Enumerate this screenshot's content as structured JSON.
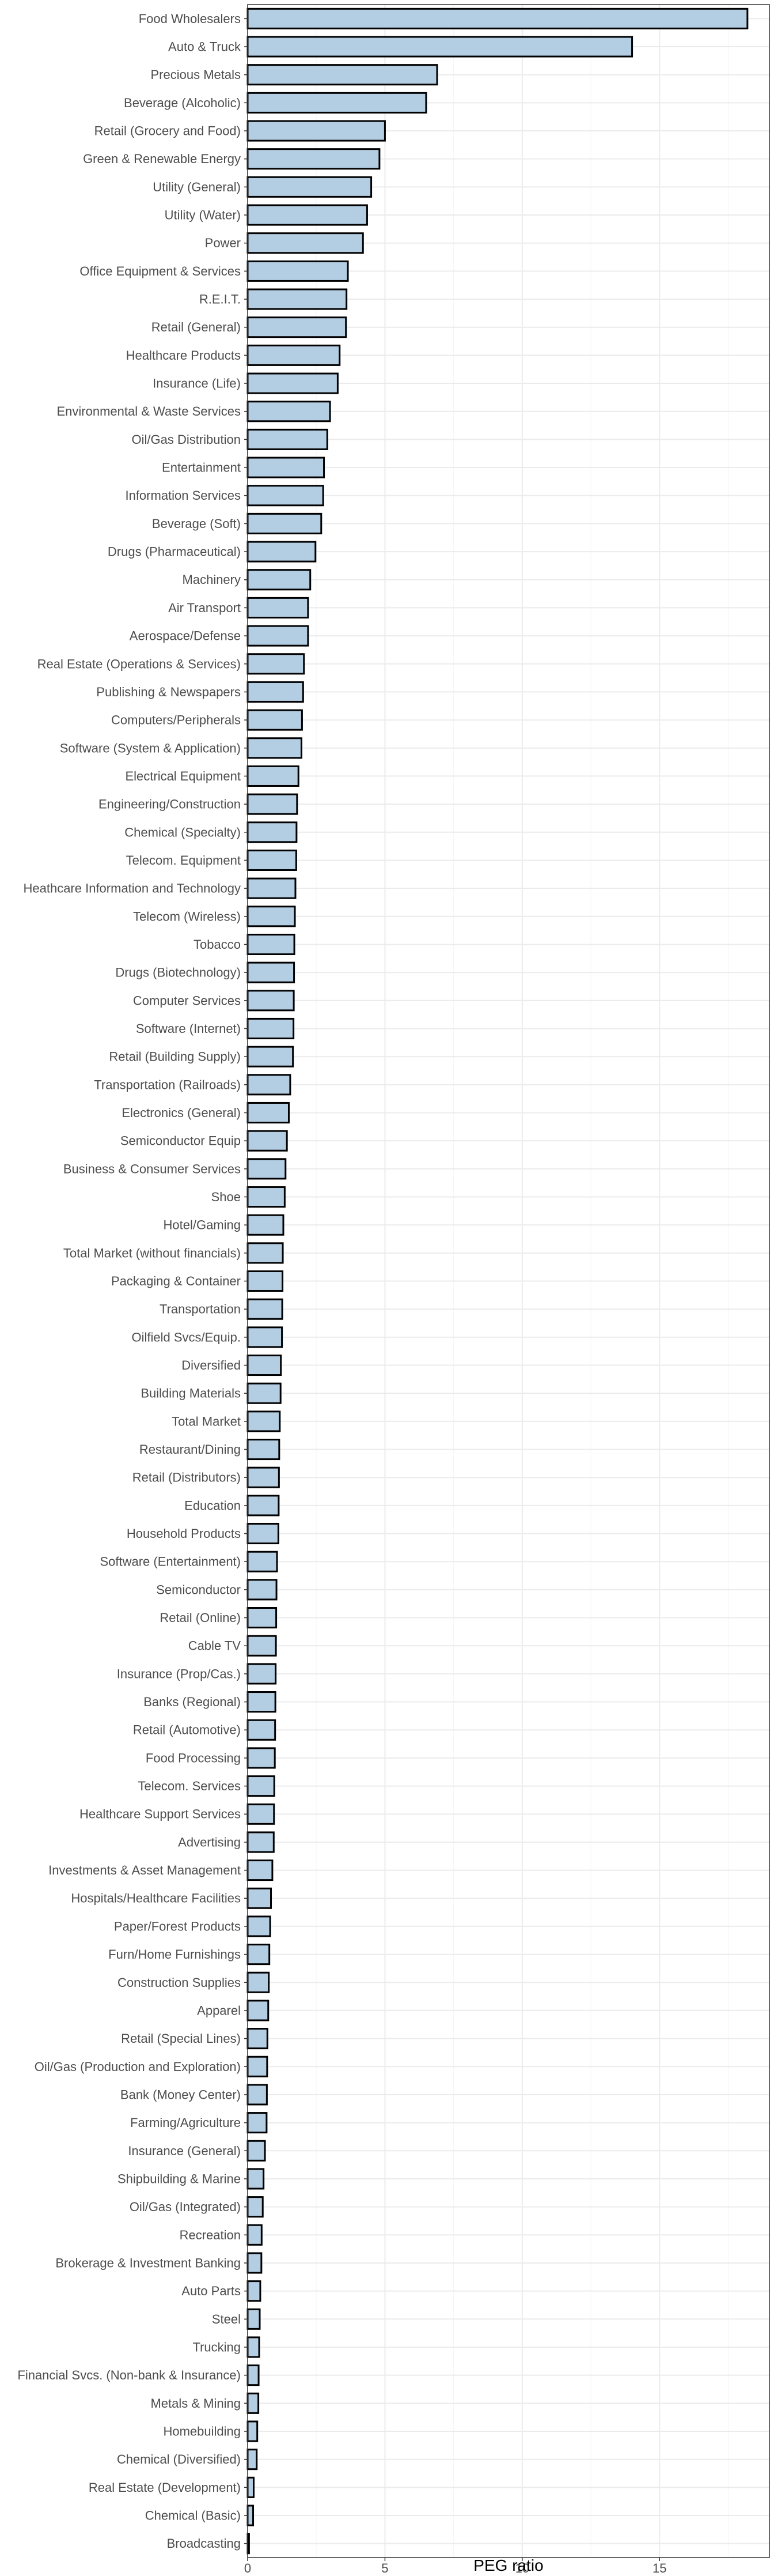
{
  "chart_data": {
    "type": "bar",
    "orientation": "horizontal",
    "title": "",
    "xlabel": "PEG ratio",
    "ylabel": "",
    "xlim": [
      0,
      19
    ],
    "x_ticks": [
      0,
      5,
      10,
      15
    ],
    "x_tick_labels": [
      "0",
      "5",
      "10",
      "15"
    ],
    "grid": true,
    "legend": "none",
    "colors": {
      "bar_fill": "#b3cde3",
      "bar_stroke": "#000000",
      "grid": "#ebebeb"
    },
    "categories": [
      "Food Wholesalers",
      "Auto & Truck",
      "Precious Metals",
      "Beverage (Alcoholic)",
      "Retail (Grocery and Food)",
      "Green & Renewable Energy",
      "Utility (General)",
      "Utility (Water)",
      "Power",
      "Office Equipment & Services",
      "R.E.I.T.",
      "Retail (General)",
      "Healthcare Products",
      "Insurance (Life)",
      "Environmental & Waste Services",
      "Oil/Gas Distribution",
      "Entertainment",
      "Information Services",
      "Beverage (Soft)",
      "Drugs (Pharmaceutical)",
      "Machinery",
      "Air Transport",
      "Aerospace/Defense",
      "Real Estate (Operations & Services)",
      "Publishing & Newspapers",
      "Computers/Peripherals",
      "Software (System & Application)",
      "Electrical Equipment",
      "Engineering/Construction",
      "Chemical (Specialty)",
      "Telecom. Equipment",
      "Heathcare Information and Technology",
      "Telecom (Wireless)",
      "Tobacco",
      "Drugs (Biotechnology)",
      "Computer Services",
      "Software (Internet)",
      "Retail (Building Supply)",
      "Transportation (Railroads)",
      "Electronics (General)",
      "Semiconductor Equip",
      "Business & Consumer Services",
      "Shoe",
      "Hotel/Gaming",
      "Total Market (without financials)",
      "Packaging & Container",
      "Transportation",
      "Oilfield Svcs/Equip.",
      "Diversified",
      "Building Materials",
      "Total Market",
      "Restaurant/Dining",
      "Retail (Distributors)",
      "Education",
      "Household Products",
      "Software (Entertainment)",
      "Semiconductor",
      "Retail (Online)",
      "Cable TV",
      "Insurance (Prop/Cas.)",
      "Banks (Regional)",
      "Retail (Automotive)",
      "Food Processing",
      "Telecom. Services",
      "Healthcare Support Services",
      "Advertising",
      "Investments & Asset Management",
      "Hospitals/Healthcare Facilities",
      "Paper/Forest Products",
      "Furn/Home Furnishings",
      "Construction Supplies",
      "Apparel",
      "Retail (Special Lines)",
      "Oil/Gas (Production and Exploration)",
      "Bank (Money Center)",
      "Farming/Agriculture",
      "Insurance (General)",
      "Shipbuilding & Marine",
      "Oil/Gas (Integrated)",
      "Recreation",
      "Brokerage & Investment Banking",
      "Auto Parts",
      "Steel",
      "Trucking",
      "Financial Svcs. (Non-bank & Insurance)",
      "Metals & Mining",
      "Homebuilding",
      "Chemical (Diversified)",
      "Real Estate (Development)",
      "Chemical (Basic)",
      "Broadcasting"
    ],
    "values": [
      18.2,
      14.0,
      6.9,
      6.5,
      5.0,
      4.8,
      4.5,
      4.35,
      4.2,
      3.65,
      3.6,
      3.58,
      3.35,
      3.28,
      3.0,
      2.9,
      2.78,
      2.75,
      2.68,
      2.47,
      2.28,
      2.2,
      2.2,
      2.05,
      2.02,
      1.98,
      1.96,
      1.85,
      1.8,
      1.78,
      1.77,
      1.74,
      1.72,
      1.7,
      1.69,
      1.68,
      1.67,
      1.65,
      1.55,
      1.5,
      1.43,
      1.38,
      1.35,
      1.3,
      1.28,
      1.27,
      1.26,
      1.25,
      1.21,
      1.2,
      1.17,
      1.15,
      1.14,
      1.13,
      1.12,
      1.07,
      1.05,
      1.04,
      1.03,
      1.02,
      1.01,
      1.0,
      0.99,
      0.97,
      0.96,
      0.95,
      0.9,
      0.85,
      0.82,
      0.79,
      0.77,
      0.75,
      0.72,
      0.71,
      0.7,
      0.69,
      0.63,
      0.58,
      0.55,
      0.51,
      0.5,
      0.46,
      0.44,
      0.42,
      0.4,
      0.39,
      0.35,
      0.33,
      0.22,
      0.2,
      0.05
    ]
  }
}
